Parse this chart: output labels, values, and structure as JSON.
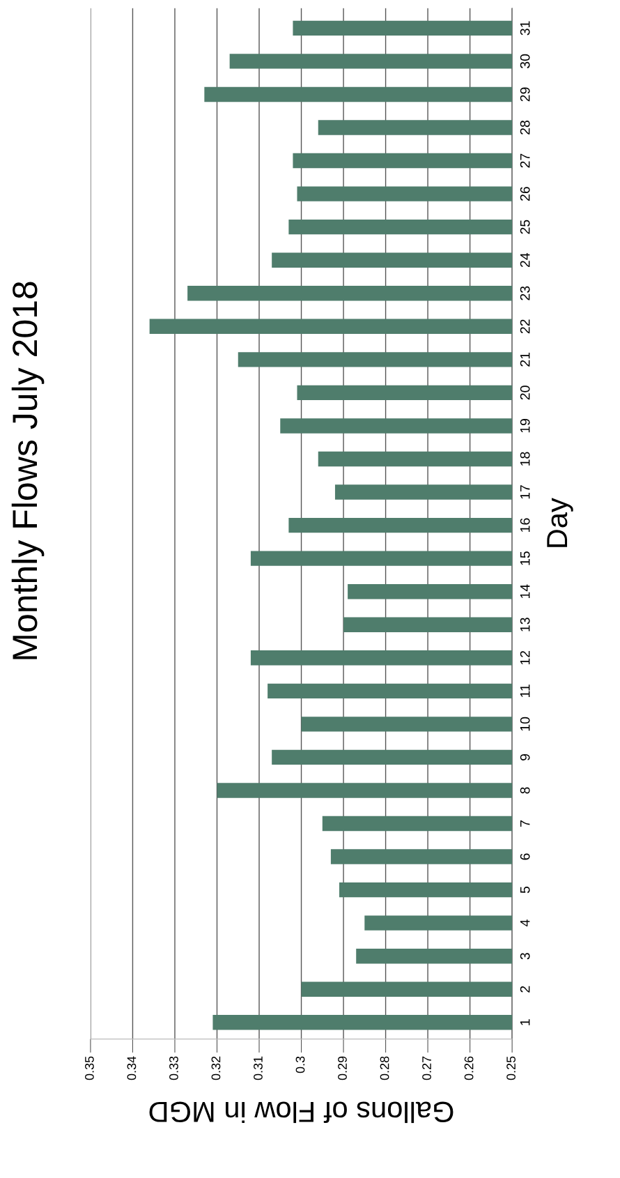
{
  "chart_data": {
    "type": "bar",
    "orientation": "horizontal",
    "title": "Monthly Flows July 2018",
    "xlabel": "Gallons of Flow in MGD",
    "ylabel": "Day",
    "categories": [
      "31",
      "30",
      "29",
      "28",
      "27",
      "26",
      "25",
      "24",
      "23",
      "22",
      "21",
      "20",
      "19",
      "18",
      "17",
      "16",
      "15",
      "14",
      "13",
      "12",
      "11",
      "10",
      "9",
      "8",
      "7",
      "6",
      "5",
      "4",
      "3",
      "2",
      "1"
    ],
    "values": [
      0.302,
      0.317,
      0.323,
      0.296,
      0.302,
      0.301,
      0.303,
      0.307,
      0.327,
      0.336,
      0.315,
      0.301,
      0.305,
      0.296,
      0.292,
      0.303,
      0.312,
      0.289,
      0.29,
      0.312,
      0.308,
      0.3,
      0.307,
      0.32,
      0.295,
      0.293,
      0.291,
      0.285,
      0.287,
      0.3,
      0.321
    ],
    "color": "#4f7d6c",
    "xlim": [
      0.35,
      0.25
    ],
    "xticks": [
      0.35,
      0.34,
      0.33,
      0.32,
      0.31,
      0.3,
      0.29,
      0.28,
      0.27,
      0.26,
      0.25
    ],
    "grid": "x"
  }
}
